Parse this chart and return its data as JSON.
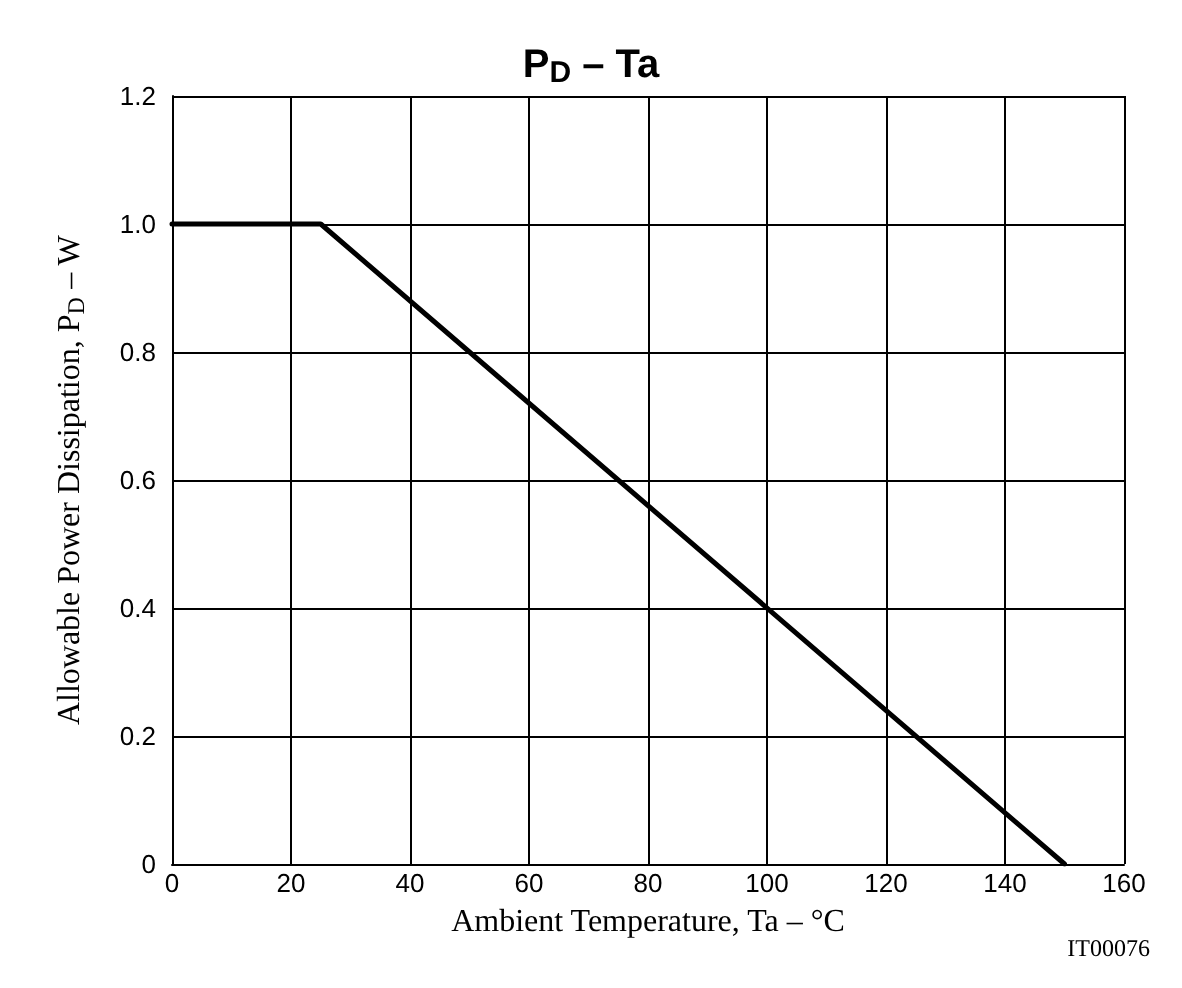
{
  "chart_data": {
    "type": "line",
    "title": "P$_{D}$ – Ta",
    "xlabel": "Ambient Temperature, Ta – °C",
    "ylabel": "Allowable Power Dissipation, P$_{D}$ – W",
    "annotations": [
      "IT00076"
    ],
    "x": [
      0,
      25,
      150
    ],
    "series": [
      {
        "color": "#000000",
        "values": [
          1.0,
          1.0,
          0
        ]
      }
    ],
    "xlim": [
      0,
      160
    ],
    "xticks": [
      0,
      20,
      40,
      60,
      80,
      100,
      120,
      140,
      160
    ],
    "ylim": [
      0,
      1.2
    ],
    "yticks": [
      0,
      0.2,
      0.4,
      0.6,
      0.8,
      {
        "value": 1,
        "label": "1.0"
      },
      1.2
    ],
    "grid": true,
    "marker": "none",
    "line_style": "solid"
  }
}
